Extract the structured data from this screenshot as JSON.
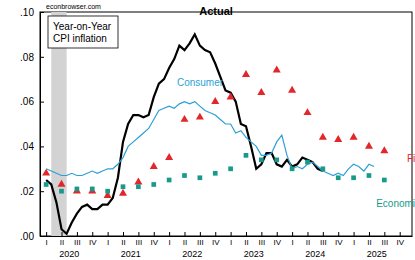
{
  "chart_data": {
    "type": "line",
    "title": [
      "Year-on-Year",
      "CPI inflation"
    ],
    "annotations": [
      "econbrowser.com"
    ],
    "grid": false,
    "xlim": [
      2019.9,
      2025.95
    ],
    "ylim": [
      0,
      0.1
    ],
    "yticks": [
      {
        "value": 0,
        "label": ".00"
      },
      {
        "value": 0.02,
        "label": ".02"
      },
      {
        "value": 0.04,
        "label": ".04"
      },
      {
        "value": 0.06,
        "label": ".06"
      },
      {
        "value": 0.08,
        "label": ".08"
      },
      {
        "value": 0.1,
        "label": ".10"
      }
    ],
    "xticks": [
      {
        "value": 2020,
        "label": "I"
      },
      {
        "value": 2020.25,
        "label": "II"
      },
      {
        "value": 2020.5,
        "label": "III"
      },
      {
        "value": 2020.75,
        "label": "IV"
      },
      {
        "value": 2021,
        "label": "I"
      },
      {
        "value": 2021.25,
        "label": "II"
      },
      {
        "value": 2021.5,
        "label": "III"
      },
      {
        "value": 2021.75,
        "label": "IV"
      },
      {
        "value": 2022,
        "label": "I"
      },
      {
        "value": 2022.25,
        "label": "II"
      },
      {
        "value": 2022.5,
        "label": "III"
      },
      {
        "value": 2022.75,
        "label": "IV"
      },
      {
        "value": 2023,
        "label": "I"
      },
      {
        "value": 2023.25,
        "label": "II"
      },
      {
        "value": 2023.5,
        "label": "III"
      },
      {
        "value": 2023.75,
        "label": "IV"
      },
      {
        "value": 2024,
        "label": "I"
      },
      {
        "value": 2024.25,
        "label": "II"
      },
      {
        "value": 2024.5,
        "label": "III"
      },
      {
        "value": 2024.75,
        "label": "IV"
      },
      {
        "value": 2025,
        "label": "I"
      },
      {
        "value": 2025.25,
        "label": "II"
      },
      {
        "value": 2025.5,
        "label": "III"
      },
      {
        "value": 2025.75,
        "label": "IV"
      }
    ],
    "x_groups": [
      2020,
      2021,
      2022,
      2023,
      2024,
      2025
    ],
    "shaded": [
      {
        "start": 2020.083,
        "end": 2020.333
      }
    ],
    "series": [
      {
        "name": "Actual",
        "type": "line",
        "color": "#000000",
        "line_style": "solid",
        "x": [
          2020.0,
          2020.083,
          2020.167,
          2020.25,
          2020.333,
          2020.417,
          2020.5,
          2020.583,
          2020.667,
          2020.75,
          2020.833,
          2020.917,
          2021.0,
          2021.083,
          2021.167,
          2021.25,
          2021.333,
          2021.417,
          2021.5,
          2021.583,
          2021.667,
          2021.75,
          2021.833,
          2021.917,
          2022.0,
          2022.083,
          2022.167,
          2022.25,
          2022.333,
          2022.417,
          2022.5,
          2022.583,
          2022.667,
          2022.75,
          2022.833,
          2022.917,
          2023.0,
          2023.083,
          2023.167,
          2023.25,
          2023.333,
          2023.417,
          2023.5,
          2023.583,
          2023.667,
          2023.75,
          2023.833,
          2023.917,
          2024.0,
          2024.083,
          2024.167,
          2024.25,
          2024.333,
          2024.417,
          2024.5
        ],
        "values": [
          0.025,
          0.023,
          0.015,
          0.003,
          0.001,
          0.006,
          0.01,
          0.013,
          0.014,
          0.012,
          0.012,
          0.014,
          0.014,
          0.017,
          0.026,
          0.042,
          0.05,
          0.054,
          0.054,
          0.053,
          0.054,
          0.062,
          0.068,
          0.07,
          0.075,
          0.079,
          0.085,
          0.083,
          0.086,
          0.09,
          0.085,
          0.083,
          0.082,
          0.077,
          0.071,
          0.065,
          0.064,
          0.06,
          0.05,
          0.049,
          0.04,
          0.03,
          0.032,
          0.037,
          0.037,
          0.032,
          0.031,
          0.034,
          0.031,
          0.032,
          0.035,
          0.034,
          0.033,
          0.03,
          0.029
        ]
      },
      {
        "name": "Consumer",
        "type": "line",
        "color": "#2e9fd6",
        "line_style": "solid",
        "x": [
          2020.0,
          2020.083,
          2020.167,
          2020.25,
          2020.333,
          2020.417,
          2020.5,
          2020.583,
          2020.667,
          2020.75,
          2020.833,
          2020.917,
          2021.0,
          2021.083,
          2021.167,
          2021.25,
          2021.333,
          2021.417,
          2021.5,
          2021.583,
          2021.667,
          2021.75,
          2021.833,
          2021.917,
          2022.0,
          2022.083,
          2022.167,
          2022.25,
          2022.333,
          2022.417,
          2022.5,
          2022.583,
          2022.667,
          2022.75,
          2022.833,
          2022.917,
          2023.0,
          2023.083,
          2023.167,
          2023.25,
          2023.333,
          2023.417,
          2023.5,
          2023.583,
          2023.667,
          2023.75,
          2023.833,
          2023.917,
          2024.0,
          2024.083,
          2024.167,
          2024.25,
          2024.333,
          2024.417,
          2024.5,
          2024.583,
          2024.667,
          2024.75,
          2024.833,
          2024.917,
          2025.0,
          2025.083,
          2025.167,
          2025.25,
          2025.333
        ],
        "values": [
          0.03,
          0.029,
          0.028,
          0.027,
          0.027,
          0.028,
          0.027,
          0.027,
          0.028,
          0.029,
          0.028,
          0.029,
          0.03,
          0.03,
          0.032,
          0.035,
          0.04,
          0.042,
          0.044,
          0.046,
          0.048,
          0.052,
          0.056,
          0.057,
          0.058,
          0.057,
          0.059,
          0.06,
          0.059,
          0.06,
          0.058,
          0.056,
          0.055,
          0.054,
          0.052,
          0.05,
          0.05,
          0.046,
          0.047,
          0.044,
          0.042,
          0.04,
          0.036,
          0.036,
          0.037,
          0.042,
          0.045,
          0.036,
          0.03,
          0.031,
          0.03,
          0.032,
          0.033,
          0.031,
          0.029,
          0.028,
          0.027,
          0.028,
          0.027,
          0.03,
          0.032,
          0.031,
          0.029,
          0.032,
          0.031
        ]
      },
      {
        "name": "Firm",
        "type": "scatter",
        "color": "#e3262a",
        "marker": "triangle",
        "x": [
          2020.0,
          2020.25,
          2020.5,
          2020.75,
          2021.0,
          2021.25,
          2021.5,
          2021.75,
          2022.0,
          2022.25,
          2022.5,
          2022.75,
          2023.0,
          2023.25,
          2023.5,
          2023.75,
          2024.0,
          2024.25,
          2024.5,
          2024.75,
          2025.0,
          2025.25,
          2025.5
        ],
        "values": [
          0.028,
          0.023,
          0.02,
          0.02,
          0.018,
          0.019,
          0.024,
          0.031,
          0.035,
          0.052,
          0.053,
          0.06,
          0.062,
          0.072,
          0.064,
          0.074,
          0.065,
          0.055,
          0.044,
          0.043,
          0.044,
          0.04,
          0.038
        ]
      },
      {
        "name": "Economists",
        "type": "scatter",
        "color": "#179a8a",
        "marker": "square",
        "x": [
          2020.0,
          2020.25,
          2020.5,
          2020.75,
          2021.0,
          2021.25,
          2021.5,
          2021.75,
          2022.0,
          2022.25,
          2022.5,
          2022.75,
          2023.0,
          2023.25,
          2023.5,
          2023.75,
          2024.0,
          2024.25,
          2024.5,
          2024.75,
          2025.0,
          2025.25,
          2025.5
        ],
        "values": [
          0.023,
          0.02,
          0.021,
          0.021,
          0.02,
          0.022,
          0.022,
          0.023,
          0.025,
          0.027,
          0.026,
          0.028,
          0.03,
          0.036,
          0.034,
          0.034,
          0.03,
          0.033,
          0.03,
          0.026,
          0.026,
          0.027,
          0.025
        ]
      }
    ]
  }
}
